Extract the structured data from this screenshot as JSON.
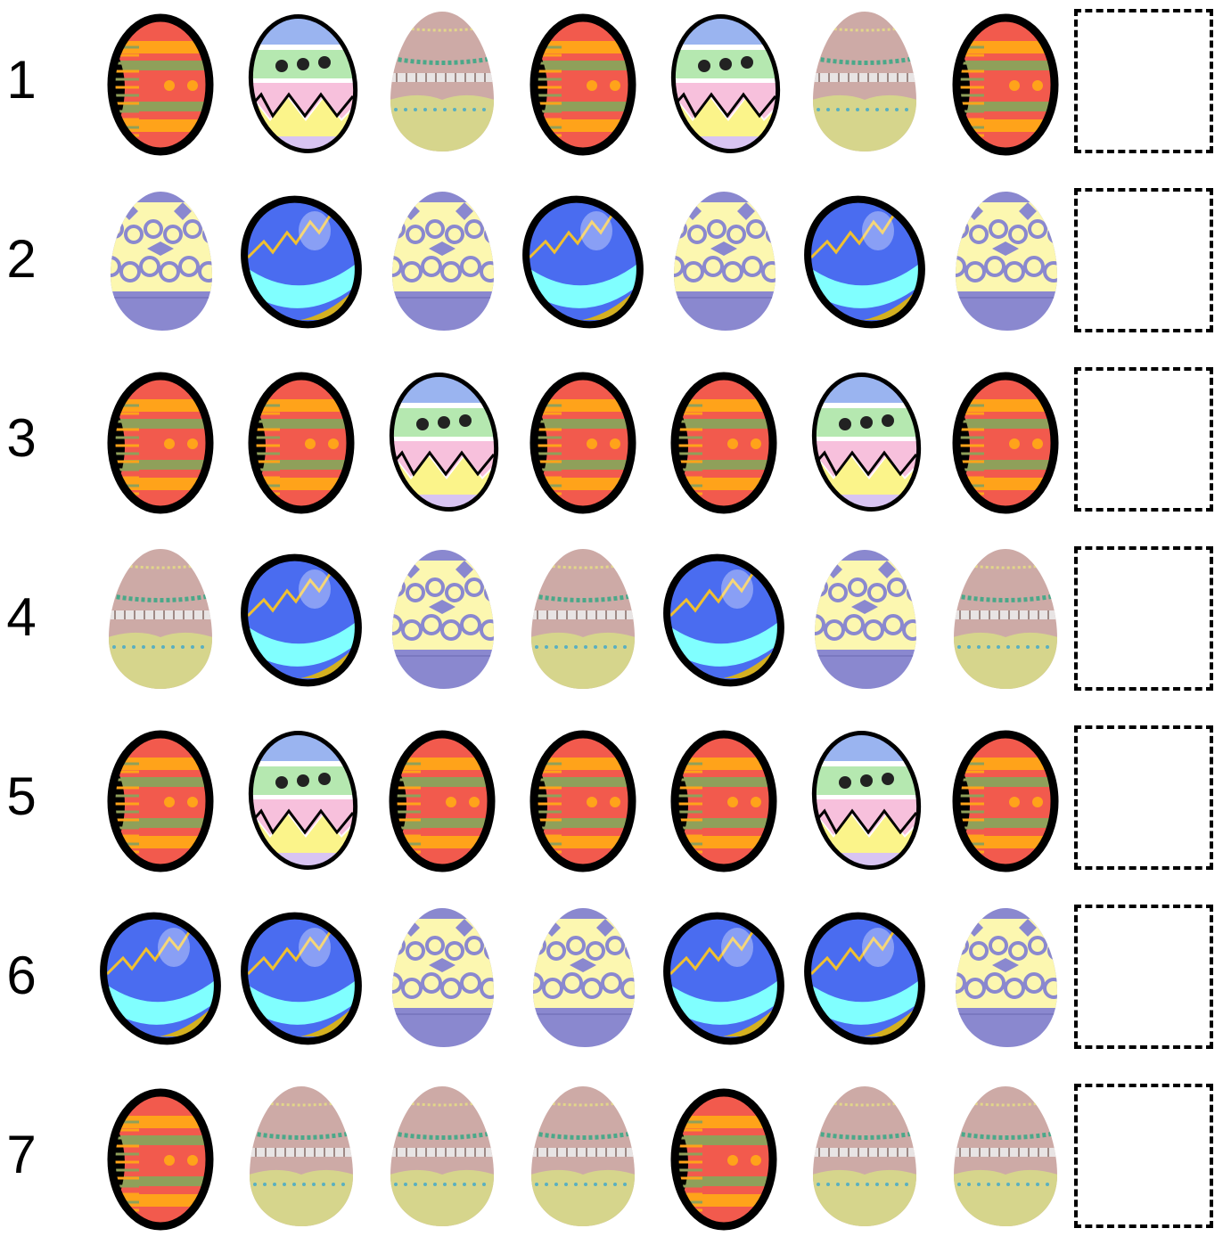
{
  "worksheet": {
    "rows": [
      {
        "number": "1",
        "eggs": [
          "striped-red",
          "zigzag-green",
          "pastel-tan",
          "striped-red",
          "zigzag-green",
          "pastel-tan",
          "striped-red"
        ]
      },
      {
        "number": "2",
        "eggs": [
          "lace-purple",
          "blue-glossy",
          "lace-purple",
          "blue-glossy",
          "lace-purple",
          "blue-glossy",
          "lace-purple"
        ]
      },
      {
        "number": "3",
        "eggs": [
          "striped-red",
          "striped-red",
          "zigzag-green",
          "striped-red",
          "striped-red",
          "zigzag-green",
          "striped-red"
        ]
      },
      {
        "number": "4",
        "eggs": [
          "pastel-tan",
          "blue-glossy",
          "lace-purple",
          "pastel-tan",
          "blue-glossy",
          "lace-purple",
          "pastel-tan"
        ]
      },
      {
        "number": "5",
        "eggs": [
          "striped-red",
          "zigzag-green",
          "striped-red",
          "striped-red",
          "striped-red",
          "zigzag-green",
          "striped-red"
        ]
      },
      {
        "number": "6",
        "eggs": [
          "blue-glossy",
          "blue-glossy",
          "lace-purple",
          "lace-purple",
          "blue-glossy",
          "blue-glossy",
          "lace-purple"
        ]
      },
      {
        "number": "7",
        "eggs": [
          "striped-red",
          "pastel-tan",
          "pastel-tan",
          "pastel-tan",
          "striped-red",
          "pastel-tan",
          "pastel-tan"
        ]
      }
    ]
  },
  "colors": {
    "striped_red": "#f25a4d",
    "stripe_orange": "#ffa31a",
    "stripe_green": "#8fa05a",
    "zigzag_green": "#b5e8b0",
    "zigzag_pink": "#f7c0dc",
    "zigzag_yellow": "#fbf48a",
    "zigzag_blue": "#9ab4f0",
    "blue_egg": "#4a6cf0",
    "blue_band": "#80ffff",
    "lace_purple": "#8a88cf",
    "lace_yellow": "#fcf7b0",
    "pastel_top": "#cdaaa6",
    "pastel_bottom": "#d6d58c"
  }
}
